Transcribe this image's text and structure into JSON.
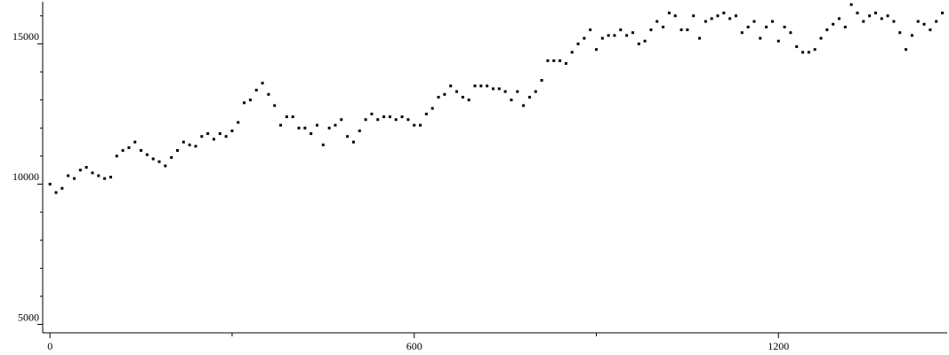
{
  "chart_data": {
    "type": "scatter",
    "color": "#000000",
    "x": [
      0,
      10,
      20,
      30,
      40,
      50,
      60,
      70,
      80,
      90,
      100,
      110,
      120,
      130,
      140,
      150,
      160,
      170,
      180,
      190,
      200,
      210,
      220,
      230,
      240,
      250,
      260,
      270,
      280,
      290,
      300,
      310,
      320,
      330,
      340,
      350,
      360,
      370,
      380,
      390,
      400,
      410,
      420,
      430,
      440,
      450,
      460,
      470,
      480,
      490,
      500,
      510,
      520,
      530,
      540,
      550,
      560,
      570,
      580,
      590,
      600,
      610,
      620,
      630,
      640,
      650,
      660,
      670,
      680,
      690,
      700,
      710,
      720,
      730,
      740,
      750,
      760,
      770,
      780,
      790,
      800,
      810,
      820,
      830,
      840,
      850,
      860,
      870,
      880,
      890,
      900,
      910,
      920,
      930,
      940,
      950,
      960,
      970,
      980,
      990,
      1000,
      1010,
      1020,
      1030,
      1040,
      1050,
      1060,
      1070,
      1080,
      1090,
      1100,
      1110,
      1120,
      1130,
      1140,
      1150,
      1160,
      1170,
      1180,
      1190,
      1200,
      1210,
      1220,
      1230,
      1240,
      1250,
      1260,
      1270,
      1280,
      1290,
      1300,
      1310,
      1320,
      1330,
      1340,
      1350,
      1360,
      1370,
      1380,
      1390,
      1400,
      1410,
      1420,
      1430,
      1440,
      1450,
      1460,
      1470
    ],
    "values": [
      10000,
      9700,
      9850,
      10300,
      10200,
      10500,
      10600,
      10400,
      10300,
      10200,
      10250,
      11000,
      11200,
      11300,
      11500,
      11200,
      11050,
      10900,
      10800,
      10650,
      10950,
      11200,
      11500,
      11400,
      11350,
      11700,
      11800,
      11600,
      11800,
      11700,
      11900,
      12200,
      12900,
      13000,
      13350,
      13600,
      13200,
      12800,
      12100,
      12400,
      12400,
      12000,
      12000,
      11800,
      12100,
      11400,
      12000,
      12100,
      12300,
      11700,
      11500,
      11900,
      12300,
      12500,
      12300,
      12400,
      12400,
      12300,
      12400,
      12300,
      12100,
      12100,
      12500,
      12700,
      13100,
      13200,
      13500,
      13300,
      13100,
      13000,
      13500,
      13500,
      13500,
      13400,
      13400,
      13300,
      13000,
      13300,
      12800,
      13100,
      13300,
      13700,
      14400,
      14400,
      14400,
      14300,
      14700,
      15000,
      15200,
      15500,
      14800,
      15200,
      15300,
      15300,
      15500,
      15300,
      15400,
      15000,
      15100,
      15500,
      15800,
      15600,
      16100,
      16000,
      15500,
      15500,
      16000,
      15200,
      15800,
      15900,
      16000,
      16100,
      15900,
      16000,
      15400,
      15600,
      15800,
      15200,
      15600,
      15800,
      15100,
      15600,
      15400,
      14900,
      14700,
      14700,
      14800,
      15200,
      15500,
      15700,
      15900,
      15600,
      16400,
      16100,
      15800,
      16000,
      16100,
      15900,
      16000,
      15800,
      15400,
      14800,
      15300,
      15800,
      15700,
      15500,
      15800,
      16100
    ],
    "xlim": [
      -12,
      1478
    ],
    "xticks": [
      0,
      600,
      1200
    ],
    "xminor_ticks": [
      300,
      900
    ],
    "ylim": [
      4700,
      16500
    ],
    "yticks": [
      5000,
      10000,
      15000
    ],
    "yminor_ticks": [
      6000,
      7000,
      8000,
      9000,
      11000,
      12000,
      13000,
      14000,
      16000
    ]
  }
}
